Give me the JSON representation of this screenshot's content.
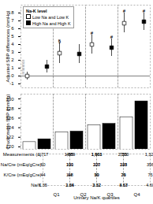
{
  "chart_data": [
    {
      "type": "scatter",
      "ylabel": "Adjusted SBP differences (mmHg)",
      "categories": [
        "Q1",
        "Q2",
        "Q3",
        "Q4"
      ],
      "tick_labels": "y",
      "series": [
        {
          "name": "Low Na and Low K",
          "color": "white",
          "marker": "square",
          "values": [
            0.0,
            2.9,
            4.0,
            6.7
          ],
          "ci_low": [
            -0.5,
            1.6,
            2.8,
            5.5
          ],
          "ci_high": [
            0.5,
            4.2,
            5.2,
            8.0
          ]
        },
        {
          "name": "High Na and High K",
          "color": "black",
          "marker": "square",
          "values": [
            1.2,
            2.8,
            3.6,
            6.9
          ],
          "ci_low": [
            0.4,
            1.6,
            2.5,
            5.8
          ],
          "ci_high": [
            2.0,
            4.0,
            4.7,
            8.0
          ]
        }
      ],
      "ylim": [
        -1.5,
        9.0
      ],
      "yticks": [
        -1,
        0,
        1,
        2,
        3,
        4,
        5,
        6,
        7,
        8
      ],
      "hline": 0,
      "legend": "upper left",
      "legend_title": "Na-K level",
      "annotations": [
        {
          "text": "§",
          "category": "Q2",
          "series": "Low Na and Low K"
        },
        {
          "text": "#",
          "category": "Q3",
          "series": "Low Na and Low K"
        },
        {
          "text": "#",
          "category": "Q3",
          "series": "High Na and High K"
        },
        {
          "text": "#",
          "category": "Q4",
          "series": "Low Na and Low K"
        },
        {
          "text": "#",
          "category": "Q4",
          "series": "High Na and High K"
        },
        {
          "text": "reference",
          "category": "Q1",
          "series": "Low Na and Low K",
          "y": 0.2
        }
      ]
    },
    {
      "type": "bar",
      "ylabel": "Crude mean SBP (mmHg)",
      "categories": [
        "Q1",
        "Q2",
        "Q3",
        "Q4"
      ],
      "tick_labels": "y",
      "series": [
        {
          "name": "Low Na and Low K",
          "color": "white",
          "values": [
            121.0,
            123.0,
            124.5,
            126.2
          ]
        },
        {
          "name": "High Na and High K",
          "color": "black",
          "values": [
            121.6,
            123.2,
            124.8,
            129.5
          ]
        }
      ],
      "ylim": [
        119.5,
        131
      ],
      "yticks": [
        120,
        122,
        124,
        126,
        128,
        130
      ]
    },
    {
      "type": "table",
      "categories": [
        "Q1",
        "Q2",
        "Q3",
        "Q4"
      ],
      "xlabel": "Urinary Na/K quartiles",
      "rows": [
        {
          "label": "Measurements (n)",
          "cells": [
            "1,717",
            "495",
            "1,889",
            "1,901",
            "1,663",
            "2,200",
            "755",
            "1,321"
          ]
        },
        {
          "label": "Na/Cre (mEq/gCre)",
          "cells": [
            "60",
            "191",
            "100",
            "207",
            "120",
            "248",
            "123",
            "356"
          ]
        },
        {
          "label": "K/Cre (mEq/gCre)",
          "cells": [
            "44",
            "118",
            "44",
            "90",
            "39",
            "79",
            "26",
            "75"
          ]
        },
        {
          "label": "Na/K",
          "cells": [
            "1.35",
            "1.64",
            "2.26",
            "2.32",
            "3.12",
            "3.13",
            "4.67",
            "4.60"
          ]
        }
      ]
    }
  ]
}
